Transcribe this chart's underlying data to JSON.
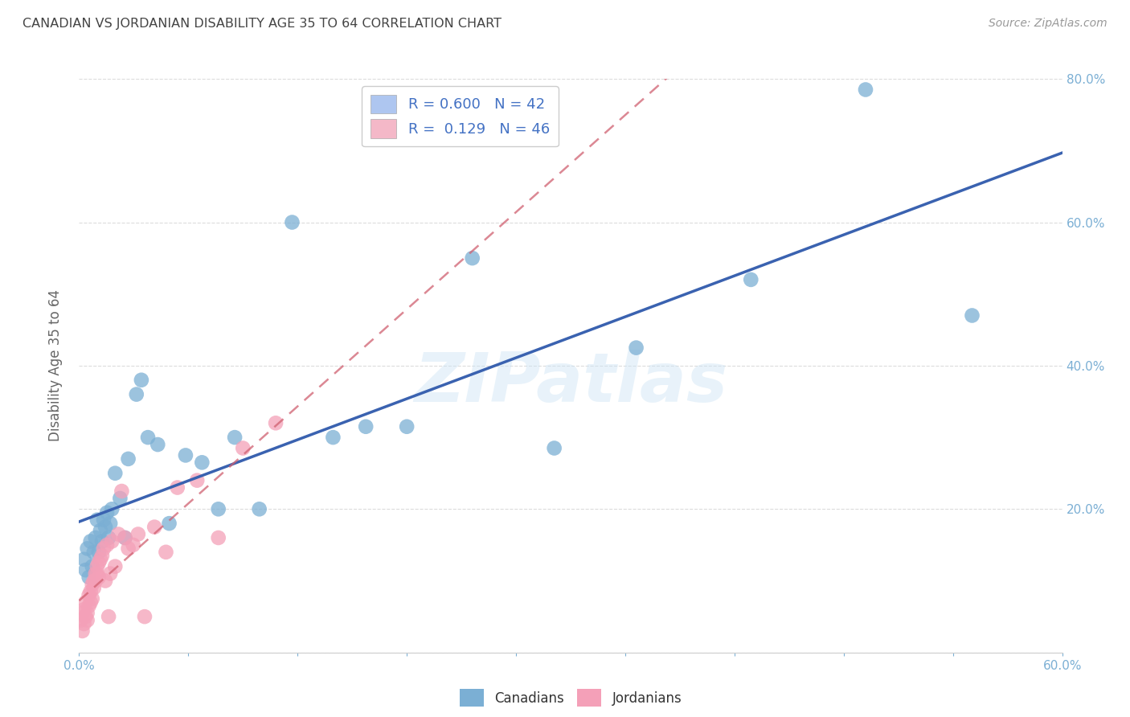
{
  "title": "CANADIAN VS JORDANIAN DISABILITY AGE 35 TO 64 CORRELATION CHART",
  "source": "Source: ZipAtlas.com",
  "ylabel": "Disability Age 35 to 64",
  "xlim": [
    0.0,
    0.6
  ],
  "ylim": [
    0.0,
    0.8
  ],
  "xtick_vals": [
    0.0,
    0.06667,
    0.13333,
    0.2,
    0.26667,
    0.33333,
    0.4,
    0.46667,
    0.53333,
    0.6
  ],
  "xtick_label_positions": [
    0.0,
    0.6
  ],
  "xtick_label_texts": [
    "0.0%",
    "60.0%"
  ],
  "ytick_vals": [
    0.0,
    0.2,
    0.4,
    0.6,
    0.8
  ],
  "ytick_labels_right": [
    "",
    "20.0%",
    "40.0%",
    "60.0%",
    "80.0%"
  ],
  "legend_r1": "R = 0.600",
  "legend_n1": "N = 42",
  "legend_r2": "R =  0.129",
  "legend_n2": "N = 46",
  "legend_color1": "#aec6f0",
  "legend_color2": "#f4b8c8",
  "canadian_x": [
    0.003,
    0.004,
    0.005,
    0.006,
    0.007,
    0.008,
    0.009,
    0.01,
    0.011,
    0.012,
    0.013,
    0.014,
    0.015,
    0.016,
    0.017,
    0.018,
    0.019,
    0.02,
    0.022,
    0.025,
    0.028,
    0.03,
    0.035,
    0.038,
    0.042,
    0.048,
    0.055,
    0.065,
    0.075,
    0.085,
    0.095,
    0.11,
    0.13,
    0.155,
    0.175,
    0.2,
    0.24,
    0.29,
    0.34,
    0.41,
    0.48,
    0.545
  ],
  "canadian_y": [
    0.13,
    0.115,
    0.145,
    0.105,
    0.155,
    0.12,
    0.14,
    0.16,
    0.185,
    0.14,
    0.17,
    0.155,
    0.185,
    0.175,
    0.195,
    0.16,
    0.18,
    0.2,
    0.25,
    0.215,
    0.16,
    0.27,
    0.36,
    0.38,
    0.3,
    0.29,
    0.18,
    0.275,
    0.265,
    0.2,
    0.3,
    0.2,
    0.6,
    0.3,
    0.315,
    0.315,
    0.55,
    0.285,
    0.425,
    0.52,
    0.785,
    0.47
  ],
  "jordanian_x": [
    0.001,
    0.002,
    0.002,
    0.003,
    0.003,
    0.004,
    0.004,
    0.005,
    0.005,
    0.006,
    0.006,
    0.007,
    0.007,
    0.008,
    0.008,
    0.009,
    0.009,
    0.01,
    0.01,
    0.011,
    0.011,
    0.012,
    0.012,
    0.013,
    0.014,
    0.015,
    0.016,
    0.017,
    0.018,
    0.019,
    0.02,
    0.022,
    0.024,
    0.026,
    0.028,
    0.03,
    0.033,
    0.036,
    0.04,
    0.046,
    0.053,
    0.06,
    0.072,
    0.085,
    0.1,
    0.12
  ],
  "jordanian_y": [
    0.045,
    0.03,
    0.055,
    0.04,
    0.06,
    0.05,
    0.07,
    0.055,
    0.045,
    0.065,
    0.08,
    0.07,
    0.085,
    0.075,
    0.095,
    0.09,
    0.1,
    0.1,
    0.11,
    0.11,
    0.12,
    0.105,
    0.125,
    0.13,
    0.135,
    0.145,
    0.1,
    0.15,
    0.05,
    0.11,
    0.155,
    0.12,
    0.165,
    0.225,
    0.16,
    0.145,
    0.15,
    0.165,
    0.05,
    0.175,
    0.14,
    0.23,
    0.24,
    0.16,
    0.285,
    0.32
  ],
  "canadian_color": "#7bafd4",
  "jordanian_color": "#f4a0b8",
  "canadian_line_color": "#3a62b0",
  "jordanian_line_color": "#d06070",
  "watermark_text": "ZIPatlas",
  "background_color": "#ffffff",
  "grid_color": "#cccccc",
  "title_color": "#444444",
  "axis_label_color": "#666666",
  "tick_color": "#7bafd4"
}
